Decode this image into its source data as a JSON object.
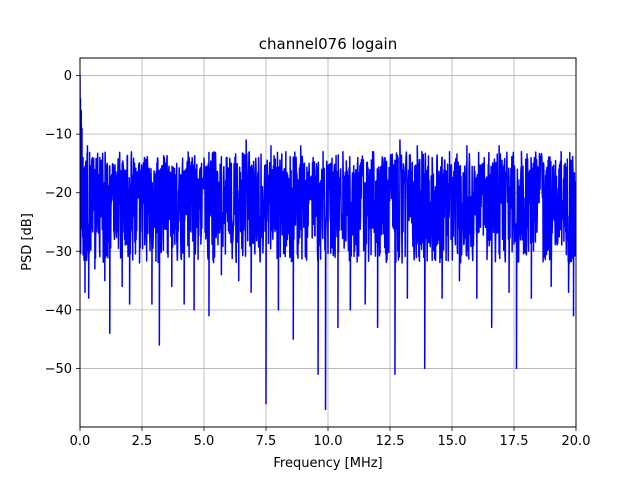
{
  "chart_data": {
    "type": "line",
    "title": "channel076 logain",
    "xlabel": "Frequency [MHz]",
    "ylabel": "PSD [dB]",
    "xlim": [
      0,
      20
    ],
    "ylim": [
      -60,
      3
    ],
    "grid": true,
    "x_ticks": [
      0.0,
      2.5,
      5.0,
      7.5,
      10.0,
      12.5,
      15.0,
      17.5,
      20.0
    ],
    "x_tick_labels": [
      "0.0",
      "2.5",
      "5.0",
      "7.5",
      "10.0",
      "12.5",
      "15.0",
      "17.5",
      "20.0"
    ],
    "y_ticks": [
      0,
      -10,
      -20,
      -30,
      -40,
      -50
    ],
    "y_tick_labels": [
      "0",
      "−10",
      "−20",
      "−30",
      "−40",
      "−50"
    ],
    "series": [
      {
        "color": "#0000ff",
        "noise_band_center": -21,
        "noise_band_upper": -13,
        "noise_band_lower": -29,
        "points": [
          [
            0.0,
            0.0
          ],
          [
            0.02,
            -4
          ],
          [
            0.05,
            -6
          ],
          [
            0.08,
            -9
          ],
          [
            0.12,
            -14
          ],
          [
            0.15,
            -23
          ],
          [
            0.2,
            -37
          ],
          [
            0.3,
            -12
          ],
          [
            0.35,
            -38
          ],
          [
            0.5,
            -14
          ],
          [
            0.6,
            -33
          ],
          [
            0.8,
            -14
          ],
          [
            1.0,
            -35
          ],
          [
            1.1,
            -15
          ],
          [
            1.2,
            -44
          ],
          [
            1.4,
            -16
          ],
          [
            1.7,
            -36
          ],
          [
            1.9,
            -14
          ],
          [
            2.0,
            -39
          ],
          [
            2.2,
            -15
          ],
          [
            2.4,
            -32
          ],
          [
            2.6,
            -14
          ],
          [
            2.9,
            -39
          ],
          [
            3.1,
            -15
          ],
          [
            3.2,
            -46
          ],
          [
            3.4,
            -14
          ],
          [
            3.7,
            -36
          ],
          [
            3.9,
            -15
          ],
          [
            4.2,
            -39
          ],
          [
            4.4,
            -14
          ],
          [
            4.6,
            -40
          ],
          [
            4.9,
            -15
          ],
          [
            5.2,
            -41
          ],
          [
            5.4,
            -13
          ],
          [
            5.7,
            -34
          ],
          [
            6.1,
            -15
          ],
          [
            6.4,
            -35
          ],
          [
            6.7,
            -11
          ],
          [
            6.9,
            -37
          ],
          [
            7.2,
            -14
          ],
          [
            7.5,
            -56
          ],
          [
            7.7,
            -12
          ],
          [
            8.0,
            -40
          ],
          [
            8.3,
            -13
          ],
          [
            8.6,
            -45
          ],
          [
            8.9,
            -12
          ],
          [
            9.1,
            -31
          ],
          [
            9.4,
            -14
          ],
          [
            9.6,
            -51
          ],
          [
            9.8,
            -13
          ],
          [
            9.9,
            -57
          ],
          [
            10.1,
            -15
          ],
          [
            10.4,
            -43
          ],
          [
            10.6,
            -13
          ],
          [
            10.9,
            -40
          ],
          [
            11.2,
            -14
          ],
          [
            11.5,
            -39
          ],
          [
            11.8,
            -13
          ],
          [
            12.0,
            -43
          ],
          [
            12.3,
            -14
          ],
          [
            12.7,
            -51
          ],
          [
            12.9,
            -11
          ],
          [
            13.2,
            -38
          ],
          [
            13.6,
            -12
          ],
          [
            13.9,
            -50
          ],
          [
            14.2,
            -14
          ],
          [
            14.6,
            -38
          ],
          [
            14.9,
            -13
          ],
          [
            15.3,
            -35
          ],
          [
            15.6,
            -12
          ],
          [
            16.0,
            -38
          ],
          [
            16.3,
            -14
          ],
          [
            16.6,
            -43
          ],
          [
            16.9,
            -12
          ],
          [
            17.3,
            -37
          ],
          [
            17.6,
            -50
          ],
          [
            17.8,
            -13
          ],
          [
            18.2,
            -38
          ],
          [
            18.6,
            -14
          ],
          [
            19.0,
            -36
          ],
          [
            19.4,
            -13
          ],
          [
            19.7,
            -37
          ],
          [
            19.9,
            -41
          ],
          [
            20.0,
            -22
          ]
        ]
      }
    ]
  }
}
